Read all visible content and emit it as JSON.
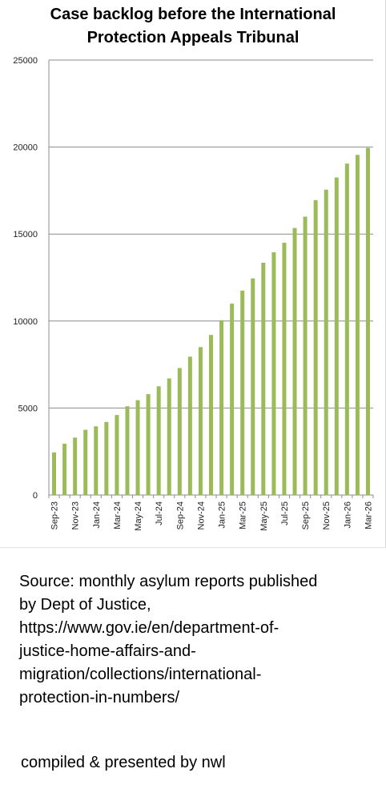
{
  "chart_data": {
    "type": "bar",
    "title": "Case backlog before the International Protection Appeals Tribunal",
    "title_lines": [
      "Case backlog before the International",
      "Protection Appeals Tribunal"
    ],
    "xlabel": "",
    "ylabel": "",
    "ylim": [
      0,
      25000
    ],
    "yticks": [
      0,
      5000,
      10000,
      15000,
      20000,
      25000
    ],
    "grid": true,
    "legend": "none",
    "bar_color": "#9bbb59",
    "categories": [
      "Sep-23",
      "Oct-23",
      "Nov-23",
      "Dec-23",
      "Jan-24",
      "Feb-24",
      "Mar-24",
      "Apr-24",
      "May-24",
      "Jun-24",
      "Jul-24",
      "Aug-24",
      "Sep-24",
      "Oct-24",
      "Nov-24",
      "Dec-24",
      "Jan-25",
      "Feb-25",
      "Mar-25",
      "Apr-25",
      "May-25",
      "Jun-25",
      "Jul-25",
      "Aug-25",
      "Sep-25",
      "Oct-25",
      "Nov-25",
      "Dec-25",
      "Jan-26",
      "Feb-26",
      "Mar-26"
    ],
    "tick_labels": [
      "Sep-23",
      "Nov-23",
      "Jan-24",
      "Mar-24",
      "May-24",
      "Jul-24",
      "Sep-24",
      "Nov-24",
      "Jan-25",
      "Mar-25",
      "May-25",
      "Jul-25",
      "Sep-25",
      "Nov-25",
      "Jan-26",
      "Mar-26"
    ],
    "values": [
      2450,
      2950,
      3300,
      3750,
      3950,
      4200,
      4600,
      5100,
      5450,
      5800,
      6250,
      6700,
      7300,
      7950,
      8500,
      9200,
      10050,
      11000,
      11750,
      12450,
      13350,
      13950,
      14500,
      15350,
      16000,
      16950,
      17550,
      18250,
      19050,
      19550,
      19950
    ]
  },
  "source_text": "Source: monthly asylum reports published by Dept of Justice, https://www.gov.ie/en/department-of-justice-home-affairs-and-migration/collections/international-protection-in-numbers/",
  "credit_text": "compiled & presented by nwl"
}
